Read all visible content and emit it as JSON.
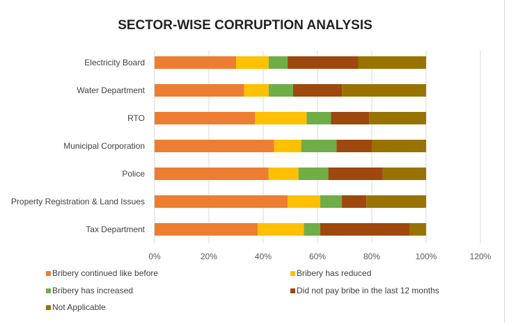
{
  "chart_data": {
    "type": "bar",
    "orientation": "horizontal",
    "stacked": true,
    "title": "SECTOR-WISE CORRUPTION ANALYSIS",
    "xlabel": "",
    "ylabel": "",
    "categories": [
      "Electricity Board",
      "Water Department",
      "RTO",
      "Municipal Corporation",
      "Police",
      "Property Registration & Land Issues",
      "Tax Department"
    ],
    "series": [
      {
        "name": "Bribery continued like before",
        "color": "#ED7D31",
        "values": [
          30,
          33,
          37,
          44,
          42,
          49,
          38
        ]
      },
      {
        "name": "Bribery has reduced",
        "color": "#FFC000",
        "values": [
          12,
          9,
          19,
          10,
          11,
          12,
          17
        ]
      },
      {
        "name": "Bribery has increased",
        "color": "#70AD47",
        "values": [
          7,
          9,
          9,
          13,
          11,
          8,
          6
        ]
      },
      {
        "name": "Did not pay bribe in the last 12 months",
        "color": "#9E480E",
        "values": [
          26,
          18,
          14,
          13,
          20,
          9,
          33
        ]
      },
      {
        "name": "Not Applicable",
        "color": "#997300",
        "values": [
          25,
          31,
          21,
          20,
          16,
          22,
          6
        ]
      }
    ],
    "xlim": [
      0,
      120
    ],
    "xticks": [
      "0%",
      "20%",
      "40%",
      "60%",
      "80%",
      "100%",
      "120%"
    ],
    "grid": "vertical",
    "legend_position": "bottom"
  }
}
